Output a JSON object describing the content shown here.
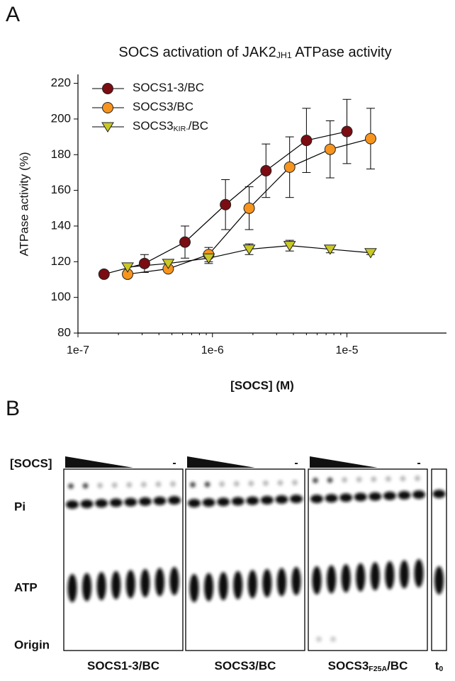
{
  "chart_data": {
    "type": "line",
    "panel_label": "A",
    "title": [
      {
        "text": "SOCS activation of JAK2"
      },
      {
        "text": "JH1",
        "sub": true
      },
      {
        "text": " ATPase activity"
      }
    ],
    "y_label": "ATPase activity (%)",
    "x_label": "[SOCS] (M)",
    "log_x": true,
    "xlim": [
      1e-07,
      5.5e-05
    ],
    "xticks": [
      {
        "value": 1e-07,
        "label": "1e-7"
      },
      {
        "value": 1e-06,
        "label": "1e-6"
      },
      {
        "value": 1e-05,
        "label": "1e-5"
      }
    ],
    "ylim": [
      80,
      225
    ],
    "yticks": [
      80,
      100,
      120,
      140,
      160,
      180,
      200,
      220
    ],
    "legend": "top-left",
    "series": [
      {
        "name": [
          {
            "text": "SOCS1-3/BC"
          }
        ],
        "color": "#7a0c12",
        "marker": "circle",
        "x": [
          1.5625e-07,
          3.125e-07,
          6.25e-07,
          1.25e-06,
          2.5e-06,
          5e-06,
          1e-05
        ],
        "values": [
          113,
          119,
          131,
          152,
          171,
          188,
          193
        ],
        "errors": [
          null,
          5,
          9,
          14,
          15,
          18,
          18
        ]
      },
      {
        "name": [
          {
            "text": "SOCS3/BC"
          }
        ],
        "color": "#f7941d",
        "marker": "circle",
        "x": [
          2.34e-07,
          4.69e-07,
          9.375e-07,
          1.875e-06,
          3.75e-06,
          7.5e-06,
          1.5e-05
        ],
        "values": [
          113,
          116,
          124,
          150,
          173,
          183,
          189
        ],
        "errors": [
          null,
          null,
          4,
          12,
          17,
          16,
          17
        ]
      },
      {
        "name": [
          {
            "text": "SOCS3"
          },
          {
            "text": "KIR-",
            "sub": true
          },
          {
            "text": "/BC"
          }
        ],
        "color": "#c9c825",
        "marker": "triangle",
        "x": [
          2.34e-07,
          4.69e-07,
          9.375e-07,
          1.875e-06,
          3.75e-06,
          7.5e-06,
          1.5e-05
        ],
        "values": [
          117,
          119,
          122,
          127,
          129,
          127,
          125
        ],
        "errors": [
          null,
          null,
          3,
          3,
          3,
          2,
          1
        ]
      }
    ]
  },
  "gel": {
    "panel_label": "B",
    "socs_label": "[SOCS]",
    "row_labels": [
      "Pi",
      "ATP",
      "Origin"
    ],
    "minus_marks": [
      "-",
      "-",
      "-"
    ],
    "lane_labels": [
      [
        {
          "text": "SOCS1-3/BC"
        }
      ],
      [
        {
          "text": "SOCS3/BC"
        }
      ],
      [
        {
          "text": "SOCS3"
        },
        {
          "text": "F25A",
          "sub": true
        },
        {
          "text": "/BC"
        }
      ],
      [
        {
          "text": "t"
        },
        {
          "text": "0",
          "sub": true
        }
      ]
    ]
  }
}
